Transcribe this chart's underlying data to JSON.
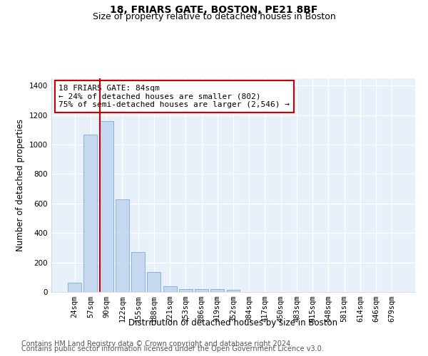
{
  "title": "18, FRIARS GATE, BOSTON, PE21 8BF",
  "subtitle": "Size of property relative to detached houses in Boston",
  "xlabel": "Distribution of detached houses by size in Boston",
  "ylabel": "Number of detached properties",
  "bar_color": "#c5d8f0",
  "bar_edge_color": "#7aadd6",
  "categories": [
    "24sqm",
    "57sqm",
    "90sqm",
    "122sqm",
    "155sqm",
    "188sqm",
    "221sqm",
    "253sqm",
    "286sqm",
    "319sqm",
    "352sqm",
    "384sqm",
    "417sqm",
    "450sqm",
    "483sqm",
    "515sqm",
    "548sqm",
    "581sqm",
    "614sqm",
    "646sqm",
    "679sqm"
  ],
  "values": [
    62,
    1068,
    1160,
    630,
    270,
    135,
    40,
    20,
    18,
    20,
    15,
    0,
    0,
    0,
    0,
    0,
    0,
    0,
    0,
    0,
    0
  ],
  "ylim": [
    0,
    1450
  ],
  "yticks": [
    0,
    200,
    400,
    600,
    800,
    1000,
    1200,
    1400
  ],
  "vline_x_index": 2,
  "vline_color": "#cc0000",
  "annotation_line1": "18 FRIARS GATE: 84sqm",
  "annotation_line2": "← 24% of detached houses are smaller (802)",
  "annotation_line3": "75% of semi-detached houses are larger (2,546) →",
  "box_color": "white",
  "box_edge_color": "#cc0000",
  "footer_line1": "Contains HM Land Registry data © Crown copyright and database right 2024.",
  "footer_line2": "Contains public sector information licensed under the Open Government Licence v3.0.",
  "background_color": "#e8f0fa",
  "grid_color": "white",
  "title_fontsize": 10,
  "subtitle_fontsize": 9,
  "axis_label_fontsize": 8.5,
  "tick_fontsize": 7.5,
  "annotation_fontsize": 8,
  "footer_fontsize": 7
}
